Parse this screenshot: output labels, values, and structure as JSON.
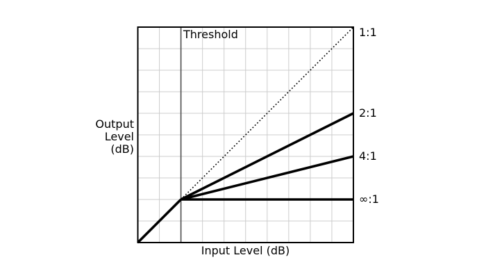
{
  "chart_data": {
    "type": "line",
    "title": "",
    "xlabel": "Input Level (dB)",
    "ylabel": "Output Level (dB)",
    "ylabel_lines": [
      "Output",
      "Level",
      "(dB)"
    ],
    "xlim": [
      0,
      10
    ],
    "ylim": [
      0,
      10
    ],
    "grid": true,
    "grid_step": 1,
    "threshold": {
      "x": 2,
      "label": "Threshold"
    },
    "below_threshold_segment": {
      "points": [
        [
          0,
          0
        ],
        [
          2,
          2
        ]
      ],
      "style": "solid"
    },
    "series": [
      {
        "label": "1:1",
        "style": "dotted",
        "points": [
          [
            2,
            2
          ],
          [
            10,
            10
          ]
        ]
      },
      {
        "label": "2:1",
        "style": "solid",
        "points": [
          [
            2,
            2
          ],
          [
            10,
            6
          ]
        ]
      },
      {
        "label": "4:1",
        "style": "solid",
        "points": [
          [
            2,
            2
          ],
          [
            10,
            4
          ]
        ]
      },
      {
        "label": "∞:1",
        "style": "solid",
        "points": [
          [
            2,
            2
          ],
          [
            10,
            2
          ]
        ]
      }
    ],
    "legend_position": "right",
    "colors": {
      "line": "#000000",
      "grid": "#cccccc",
      "threshold": "#555555",
      "border": "#000000",
      "background": "#ffffff",
      "text": "#000000"
    }
  }
}
